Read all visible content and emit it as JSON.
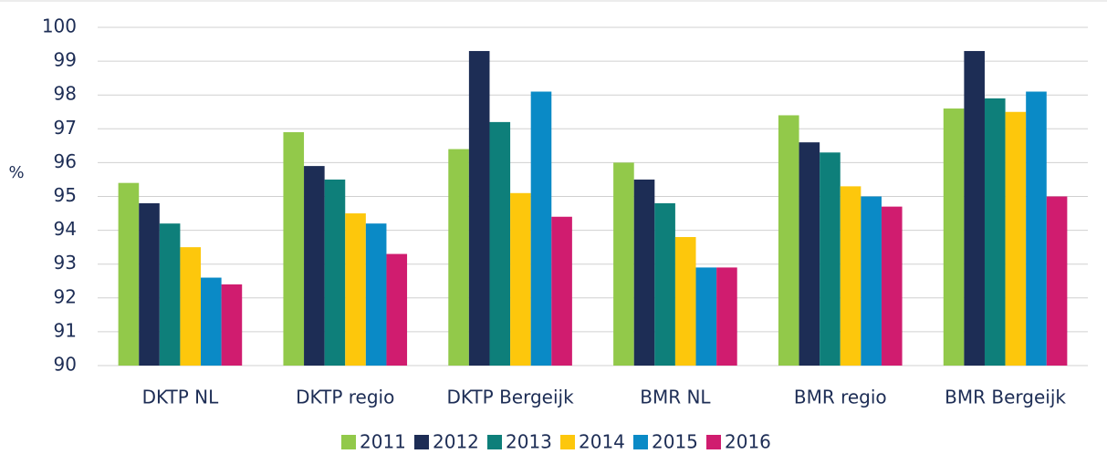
{
  "chart_data": {
    "type": "bar",
    "y_label": "%",
    "categories": [
      "DKTP NL",
      "DKTP regio",
      "DKTP Bergeijk",
      "BMR NL",
      "BMR regio",
      "BMR Bergeijk"
    ],
    "series": [
      {
        "name": "2011",
        "color": "#92c94a",
        "values": [
          95.4,
          96.9,
          96.4,
          96.0,
          97.4,
          97.6
        ]
      },
      {
        "name": "2012",
        "color": "#1d2d55",
        "values": [
          94.8,
          95.9,
          99.3,
          95.5,
          96.6,
          99.3
        ]
      },
      {
        "name": "2013",
        "color": "#0e7f7a",
        "values": [
          94.2,
          95.5,
          97.2,
          94.8,
          96.3,
          97.9
        ]
      },
      {
        "name": "2014",
        "color": "#fdc70c",
        "values": [
          93.5,
          94.5,
          95.1,
          93.8,
          95.3,
          97.5
        ]
      },
      {
        "name": "2015",
        "color": "#0a8ac6",
        "values": [
          92.6,
          94.2,
          98.1,
          92.9,
          95.0,
          98.1
        ]
      },
      {
        "name": "2016",
        "color": "#d01c6f",
        "values": [
          92.4,
          93.3,
          94.4,
          92.9,
          94.7,
          95.0
        ]
      }
    ],
    "ylim": [
      90,
      100
    ],
    "yticks": [
      90,
      91,
      92,
      93,
      94,
      95,
      96,
      97,
      98,
      99,
      100
    ],
    "grid": true,
    "legend": "bottom"
  }
}
